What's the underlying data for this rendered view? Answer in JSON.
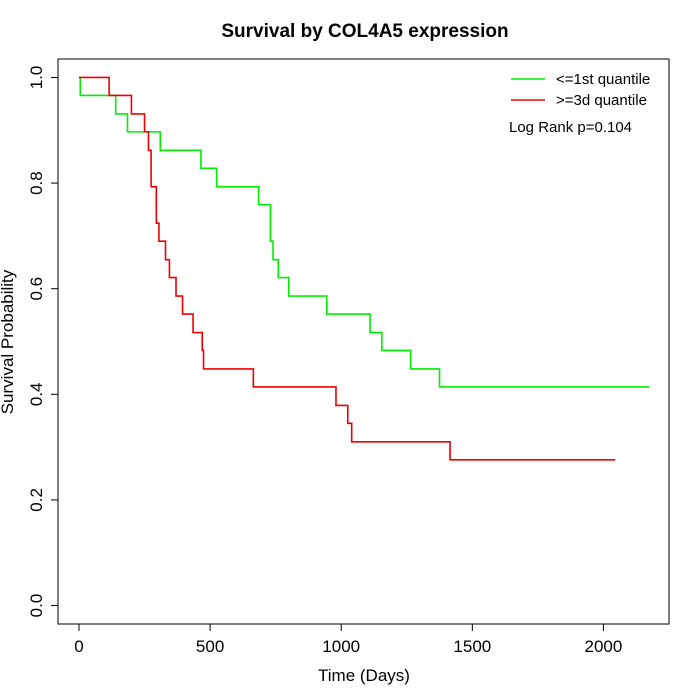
{
  "chart_data": {
    "type": "line",
    "title": "Survival by COL4A5 expression",
    "xlabel": "Time (Days)",
    "ylabel": "Survival Probability",
    "xlim": [
      -80,
      2250
    ],
    "ylim": [
      -0.035,
      1.035
    ],
    "x_ticks": [
      0,
      500,
      1000,
      1500,
      2000
    ],
    "x_tick_labels": [
      "0",
      "500",
      "1000",
      "1500",
      "2000"
    ],
    "y_ticks": [
      0.0,
      0.2,
      0.4,
      0.6,
      0.8,
      1.0
    ],
    "y_tick_labels": [
      "0.0",
      "0.2",
      "0.4",
      "0.6",
      "0.8",
      "1.0"
    ],
    "grid": false,
    "legend_position": "top-right",
    "annotation": "Log Rank p=0.104",
    "series": [
      {
        "name": "<=1st quantile",
        "color": "#00ee00",
        "x": [
          0,
          5,
          140,
          185,
          310,
          465,
          525,
          685,
          730,
          740,
          760,
          800,
          945,
          1110,
          1155,
          1265,
          1375,
          2175
        ],
        "y": [
          1.0,
          0.966,
          0.931,
          0.897,
          0.862,
          0.828,
          0.793,
          0.759,
          0.69,
          0.655,
          0.621,
          0.586,
          0.552,
          0.517,
          0.483,
          0.448,
          0.414,
          0.414
        ]
      },
      {
        "name": ">=3d quantile",
        "color": "#ee0000",
        "x": [
          0,
          115,
          200,
          250,
          265,
          275,
          295,
          305,
          330,
          345,
          370,
          395,
          435,
          470,
          475,
          665,
          980,
          1025,
          1040,
          1415,
          2045
        ],
        "y": [
          1.0,
          0.966,
          0.931,
          0.897,
          0.862,
          0.793,
          0.724,
          0.69,
          0.655,
          0.621,
          0.586,
          0.552,
          0.517,
          0.483,
          0.448,
          0.414,
          0.379,
          0.345,
          0.31,
          0.276,
          0.276
        ]
      }
    ]
  }
}
